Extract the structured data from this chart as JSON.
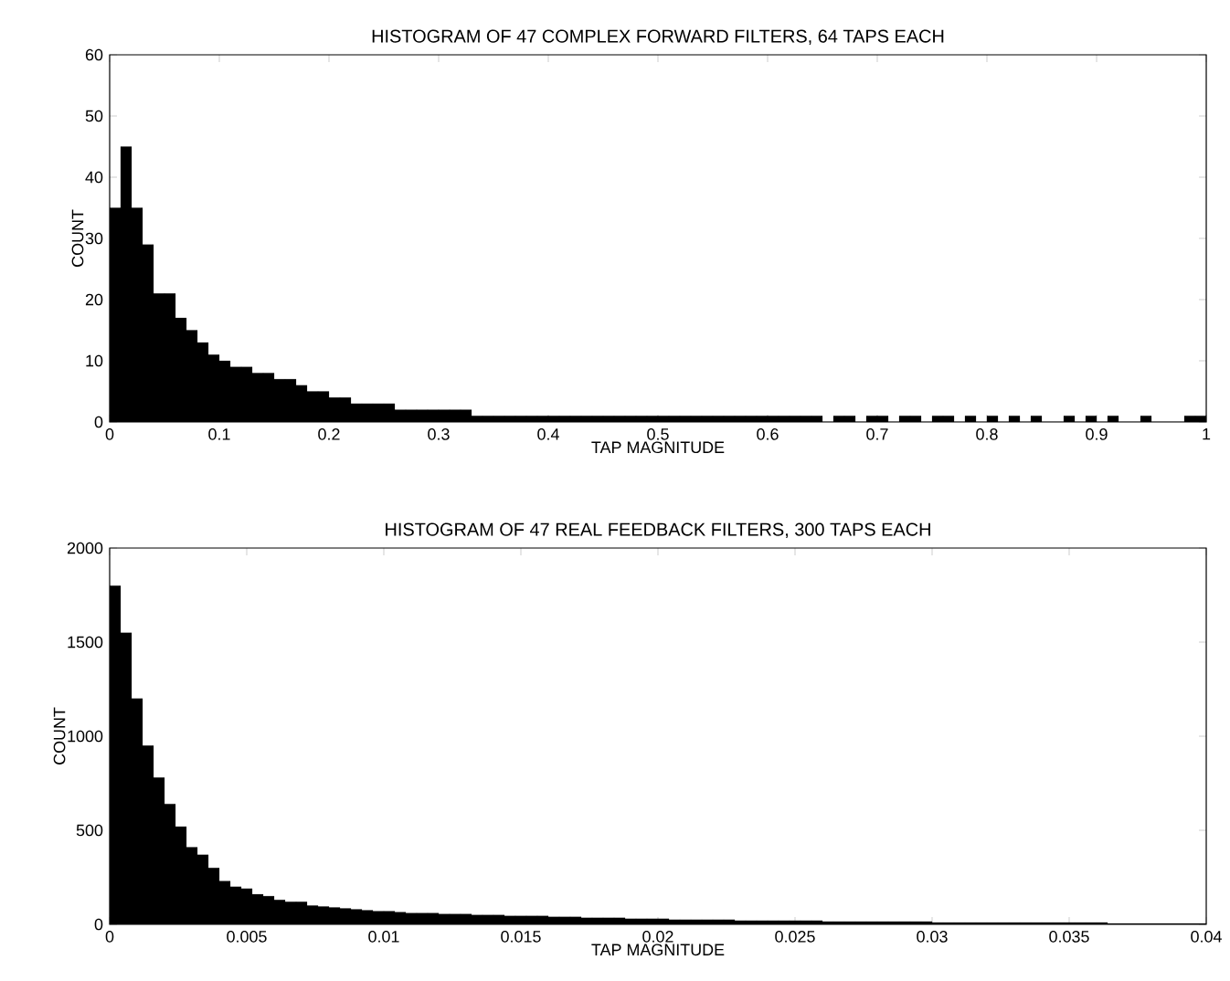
{
  "chart_data": [
    {
      "type": "histogram",
      "title": "HISTOGRAM OF 47 COMPLEX FORWARD FILTERS, 64 TAPS EACH",
      "xlabel": "TAP MAGNITUDE",
      "ylabel": "COUNT",
      "color": "#000000",
      "bins": [
        0,
        0.01,
        0.02,
        0.03,
        0.04,
        0.05,
        0.06,
        0.07,
        0.08,
        0.09,
        0.1,
        0.11,
        0.12,
        0.13,
        0.14,
        0.15,
        0.16,
        0.17,
        0.18,
        0.19,
        0.2,
        0.21,
        0.22,
        0.23,
        0.24,
        0.25,
        0.26,
        0.27,
        0.28,
        0.29,
        0.3,
        0.31,
        0.32,
        0.33,
        0.34,
        0.35,
        0.36,
        0.37,
        0.38,
        0.39,
        0.4,
        0.41,
        0.42,
        0.43,
        0.44,
        0.45,
        0.46,
        0.47,
        0.48,
        0.49,
        0.5,
        0.51,
        0.52,
        0.53,
        0.54,
        0.55,
        0.56,
        0.57,
        0.58,
        0.59,
        0.6,
        0.61,
        0.62,
        0.63,
        0.64,
        0.65,
        0.66,
        0.67,
        0.68,
        0.69,
        0.7,
        0.71,
        0.72,
        0.73,
        0.74,
        0.75,
        0.76,
        0.77,
        0.78,
        0.79,
        0.8,
        0.81,
        0.82,
        0.83,
        0.84,
        0.85,
        0.86,
        0.87,
        0.88,
        0.89,
        0.9,
        0.91,
        0.92,
        0.93,
        0.94,
        0.95,
        0.96,
        0.97,
        0.98,
        0.99,
        1
      ],
      "values": [
        35,
        45,
        35,
        29,
        21,
        21,
        17,
        15,
        13,
        11,
        10,
        9,
        9,
        8,
        8,
        7,
        7,
        6,
        5,
        5,
        4,
        4,
        3,
        3,
        3,
        3,
        2,
        2,
        2,
        2,
        2,
        2,
        2,
        1,
        1,
        1,
        1,
        1,
        1,
        1,
        1,
        1,
        1,
        1,
        1,
        1,
        1,
        1,
        1,
        1,
        1,
        1,
        1,
        1,
        1,
        1,
        1,
        1,
        1,
        1,
        1,
        1,
        1,
        1,
        1,
        0,
        1,
        1,
        0,
        1,
        1,
        0,
        1,
        1,
        0,
        1,
        1,
        0,
        1,
        0,
        1,
        0,
        1,
        0,
        1,
        0,
        0,
        1,
        0,
        1,
        0,
        1,
        0,
        0,
        1,
        0,
        0,
        0,
        1,
        1
      ],
      "xlim": [
        0,
        1
      ],
      "ylim": [
        0,
        60
      ],
      "xticks": [
        0,
        0.1,
        0.2,
        0.3,
        0.4,
        0.5,
        0.6,
        0.7,
        0.8,
        0.9,
        1
      ],
      "yticks": [
        0,
        10,
        20,
        30,
        40,
        50,
        60
      ]
    },
    {
      "type": "histogram",
      "title": "HISTOGRAM OF 47 REAL FEEDBACK FILTERS, 300 TAPS EACH",
      "xlabel": "TAP MAGNITUDE",
      "ylabel": "COUNT",
      "color": "#000000",
      "bins": [
        0,
        0.0004,
        0.0008,
        0.0012,
        0.0016,
        0.002,
        0.0024,
        0.0028,
        0.0032,
        0.0036,
        0.004,
        0.0044,
        0.0048,
        0.0052,
        0.0056,
        0.006,
        0.0064,
        0.0068,
        0.0072,
        0.0076,
        0.008,
        0.0084,
        0.0088,
        0.0092,
        0.0096,
        0.01,
        0.0104,
        0.0108,
        0.0112,
        0.0116,
        0.012,
        0.0124,
        0.0128,
        0.0132,
        0.0136,
        0.014,
        0.0144,
        0.0148,
        0.0152,
        0.0156,
        0.016,
        0.0164,
        0.0168,
        0.0172,
        0.0176,
        0.018,
        0.0184,
        0.0188,
        0.0192,
        0.0196,
        0.02,
        0.0204,
        0.0208,
        0.0212,
        0.0216,
        0.022,
        0.0224,
        0.0228,
        0.0232,
        0.0236,
        0.024,
        0.0244,
        0.0248,
        0.0252,
        0.0256,
        0.026,
        0.0264,
        0.0268,
        0.0272,
        0.0276,
        0.028,
        0.0284,
        0.0288,
        0.0292,
        0.0296,
        0.03,
        0.0304,
        0.0308,
        0.0312,
        0.0316,
        0.032,
        0.0324,
        0.0328,
        0.0332,
        0.0336,
        0.034,
        0.0344,
        0.0348,
        0.0352,
        0.0356,
        0.036,
        0.0364,
        0.0368,
        0.0372,
        0.0376,
        0.038,
        0.0384,
        0.0388,
        0.0392,
        0.0396,
        0.04
      ],
      "values": [
        1800,
        1550,
        1200,
        950,
        780,
        640,
        520,
        410,
        370,
        300,
        230,
        200,
        190,
        160,
        150,
        130,
        120,
        120,
        100,
        95,
        90,
        85,
        80,
        75,
        70,
        70,
        65,
        60,
        60,
        60,
        55,
        55,
        55,
        50,
        50,
        50,
        45,
        45,
        45,
        45,
        40,
        40,
        40,
        35,
        35,
        35,
        35,
        30,
        30,
        30,
        30,
        25,
        25,
        25,
        25,
        25,
        25,
        20,
        20,
        20,
        20,
        20,
        20,
        20,
        20,
        15,
        15,
        15,
        15,
        15,
        15,
        15,
        15,
        15,
        15,
        10,
        10,
        10,
        10,
        10,
        10,
        10,
        10,
        10,
        10,
        10,
        10,
        10,
        10,
        10,
        10,
        5,
        5,
        5,
        5,
        5,
        5,
        5,
        5,
        5
      ],
      "xlim": [
        0,
        0.04
      ],
      "ylim": [
        0,
        2000
      ],
      "xticks": [
        0,
        0.005,
        0.01,
        0.015,
        0.02,
        0.025,
        0.03,
        0.035,
        0.04
      ],
      "yticks": [
        0,
        500,
        1000,
        1500,
        2000
      ]
    }
  ]
}
